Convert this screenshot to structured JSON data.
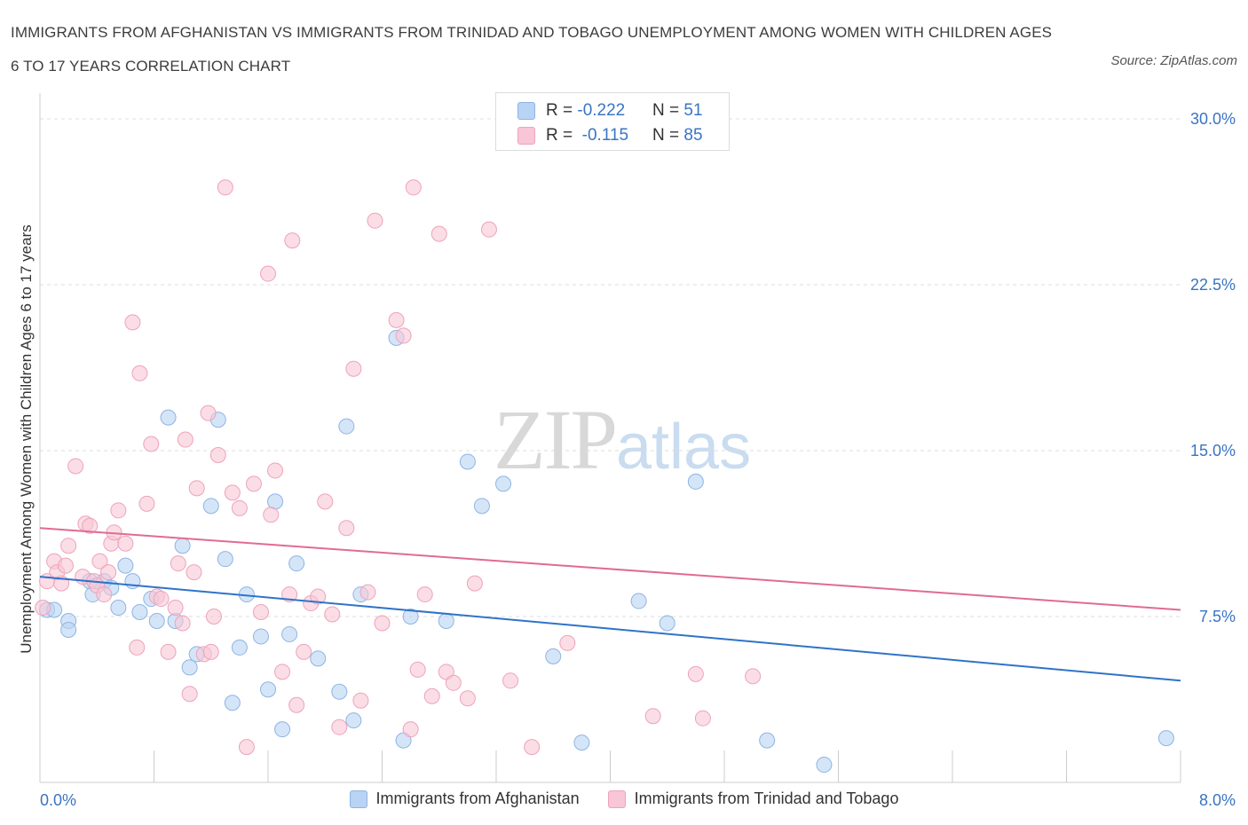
{
  "title": "IMMIGRANTS FROM AFGHANISTAN VS IMMIGRANTS FROM TRINIDAD AND TOBAGO UNEMPLOYMENT AMONG WOMEN WITH CHILDREN AGES 6 TO 17 YEARS CORRELATION CHART",
  "source": "Source: ZipAtlas.com",
  "watermark": {
    "zip": "ZIP",
    "atlas": "atlas"
  },
  "colors": {
    "afghanistan_fill": "#b9d3f4",
    "afghanistan_stroke": "#8eb4e3",
    "afghanistan_line": "#2f73c9",
    "trinidad_fill": "#f8c6d6",
    "trinidad_stroke": "#eda3bc",
    "trinidad_line": "#e06b94",
    "axis_label": "#3a74c4",
    "grid": "#dddddd"
  },
  "stats": [
    {
      "r_label": "R = ",
      "r_value": "-0.222",
      "n_label": "N = ",
      "n_value": "51"
    },
    {
      "r_label": "R = ",
      "r_value": " -0.115",
      "n_label": "N = ",
      "n_value": "85"
    }
  ],
  "legend": [
    "Immigrants from Afghanistan",
    "Immigrants from Trinidad and Tobago"
  ],
  "chart_data": {
    "type": "scatter",
    "title": "IMMIGRANTS FROM AFGHANISTAN VS IMMIGRANTS FROM TRINIDAD AND TOBAGO UNEMPLOYMENT AMONG WOMEN WITH CHILDREN AGES 6 TO 17 YEARS CORRELATION CHART",
    "xlabel": "",
    "ylabel": "Unemployment Among Women with Children Ages 6 to 17 years",
    "xlim": [
      0,
      8
    ],
    "ylim": [
      0,
      30
    ],
    "x_tick_labels": [
      {
        "value": 0,
        "label": "0.0%"
      },
      {
        "value": 8,
        "label": "8.0%"
      }
    ],
    "y_tick_labels": [
      {
        "value": 7.5,
        "label": "7.5%"
      },
      {
        "value": 15,
        "label": "15.0%"
      },
      {
        "value": 22.5,
        "label": "22.5%"
      },
      {
        "value": 30,
        "label": "30.0%"
      }
    ],
    "grid": true,
    "legend_position": "bottom",
    "series": [
      {
        "name": "Immigrants from Afghanistan",
        "trend": [
          [
            0,
            9.3
          ],
          [
            8,
            4.6
          ]
        ],
        "points": [
          [
            0.05,
            7.8
          ],
          [
            0.1,
            7.8
          ],
          [
            0.2,
            7.3
          ],
          [
            0.2,
            6.9
          ],
          [
            0.35,
            9.1
          ],
          [
            0.37,
            8.5
          ],
          [
            0.45,
            9.1
          ],
          [
            0.5,
            8.8
          ],
          [
            0.55,
            7.9
          ],
          [
            0.6,
            9.8
          ],
          [
            0.65,
            9.1
          ],
          [
            0.7,
            7.7
          ],
          [
            0.78,
            8.3
          ],
          [
            0.82,
            7.3
          ],
          [
            0.9,
            16.5
          ],
          [
            0.95,
            7.3
          ],
          [
            1.0,
            10.7
          ],
          [
            1.05,
            5.2
          ],
          [
            1.1,
            5.8
          ],
          [
            1.2,
            12.5
          ],
          [
            1.25,
            16.4
          ],
          [
            1.3,
            10.1
          ],
          [
            1.35,
            3.6
          ],
          [
            1.4,
            6.1
          ],
          [
            1.45,
            8.5
          ],
          [
            1.55,
            6.6
          ],
          [
            1.6,
            4.2
          ],
          [
            1.65,
            12.7
          ],
          [
            1.7,
            2.4
          ],
          [
            1.75,
            6.7
          ],
          [
            1.8,
            9.9
          ],
          [
            1.95,
            5.6
          ],
          [
            2.1,
            4.1
          ],
          [
            2.15,
            16.1
          ],
          [
            2.2,
            2.8
          ],
          [
            2.25,
            8.5
          ],
          [
            2.5,
            20.1
          ],
          [
            2.55,
            1.9
          ],
          [
            2.6,
            7.5
          ],
          [
            2.85,
            7.3
          ],
          [
            3.0,
            14.5
          ],
          [
            3.1,
            12.5
          ],
          [
            3.25,
            13.5
          ],
          [
            3.6,
            5.7
          ],
          [
            3.8,
            1.8
          ],
          [
            4.2,
            8.2
          ],
          [
            4.4,
            7.2
          ],
          [
            4.6,
            13.6
          ],
          [
            5.1,
            1.9
          ],
          [
            5.5,
            0.8
          ],
          [
            7.9,
            2.0
          ]
        ]
      },
      {
        "name": "Immigrants from Trinidad and Tobago",
        "trend": [
          [
            0,
            11.5
          ],
          [
            8,
            7.8
          ]
        ],
        "points": [
          [
            0.02,
            7.9
          ],
          [
            0.05,
            9.1
          ],
          [
            0.1,
            10.0
          ],
          [
            0.12,
            9.5
          ],
          [
            0.15,
            9.0
          ],
          [
            0.18,
            9.8
          ],
          [
            0.2,
            10.7
          ],
          [
            0.25,
            14.3
          ],
          [
            0.3,
            9.3
          ],
          [
            0.32,
            11.7
          ],
          [
            0.35,
            11.6
          ],
          [
            0.38,
            9.1
          ],
          [
            0.4,
            8.9
          ],
          [
            0.42,
            10.0
          ],
          [
            0.45,
            8.5
          ],
          [
            0.48,
            9.5
          ],
          [
            0.5,
            10.8
          ],
          [
            0.52,
            11.3
          ],
          [
            0.55,
            12.3
          ],
          [
            0.6,
            10.8
          ],
          [
            0.65,
            20.8
          ],
          [
            0.68,
            6.1
          ],
          [
            0.7,
            18.5
          ],
          [
            0.75,
            12.6
          ],
          [
            0.78,
            15.3
          ],
          [
            0.82,
            8.4
          ],
          [
            0.85,
            8.3
          ],
          [
            0.9,
            5.9
          ],
          [
            0.95,
            7.9
          ],
          [
            0.97,
            9.9
          ],
          [
            1.0,
            7.2
          ],
          [
            1.02,
            15.5
          ],
          [
            1.05,
            4.0
          ],
          [
            1.08,
            9.5
          ],
          [
            1.1,
            13.3
          ],
          [
            1.15,
            5.8
          ],
          [
            1.18,
            16.7
          ],
          [
            1.2,
            5.9
          ],
          [
            1.22,
            7.5
          ],
          [
            1.25,
            14.8
          ],
          [
            1.3,
            26.9
          ],
          [
            1.35,
            13.1
          ],
          [
            1.4,
            12.4
          ],
          [
            1.45,
            1.6
          ],
          [
            1.5,
            13.5
          ],
          [
            1.55,
            7.7
          ],
          [
            1.6,
            23.0
          ],
          [
            1.62,
            12.1
          ],
          [
            1.65,
            14.1
          ],
          [
            1.7,
            5.0
          ],
          [
            1.75,
            8.5
          ],
          [
            1.77,
            24.5
          ],
          [
            1.8,
            3.5
          ],
          [
            1.85,
            5.9
          ],
          [
            1.9,
            8.1
          ],
          [
            1.95,
            8.4
          ],
          [
            2.0,
            12.7
          ],
          [
            2.05,
            7.6
          ],
          [
            2.1,
            2.5
          ],
          [
            2.15,
            11.5
          ],
          [
            2.2,
            18.7
          ],
          [
            2.25,
            3.7
          ],
          [
            2.3,
            8.6
          ],
          [
            2.35,
            25.4
          ],
          [
            2.4,
            7.2
          ],
          [
            2.5,
            20.9
          ],
          [
            2.55,
            20.2
          ],
          [
            2.6,
            2.4
          ],
          [
            2.62,
            26.9
          ],
          [
            2.65,
            5.1
          ],
          [
            2.7,
            8.5
          ],
          [
            2.75,
            3.9
          ],
          [
            2.8,
            24.8
          ],
          [
            2.85,
            5.0
          ],
          [
            2.9,
            4.5
          ],
          [
            3.0,
            3.8
          ],
          [
            3.05,
            9.0
          ],
          [
            3.15,
            25.0
          ],
          [
            3.3,
            4.6
          ],
          [
            3.45,
            1.6
          ],
          [
            3.7,
            6.3
          ],
          [
            4.3,
            3.0
          ],
          [
            4.6,
            4.9
          ],
          [
            4.65,
            2.9
          ],
          [
            5.0,
            4.8
          ]
        ]
      }
    ]
  }
}
